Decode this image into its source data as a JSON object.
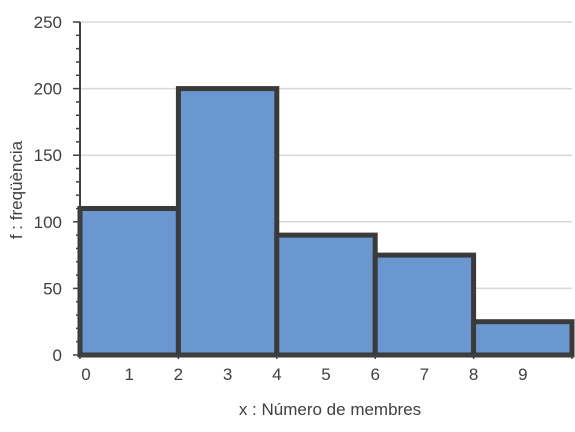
{
  "chart_data": {
    "type": "bar",
    "xlabel": "x : Número de membres",
    "ylabel": "f : freqüència",
    "ylim": [
      0,
      250
    ],
    "yticks": [
      0,
      50,
      100,
      150,
      200,
      250
    ],
    "xlim": [
      0,
      10
    ],
    "xtick_labels": [
      "0",
      "1",
      "2",
      "3",
      "4",
      "5",
      "6",
      "7",
      "8",
      "9"
    ],
    "bins": [
      {
        "start": 0,
        "end": 2,
        "value": 110
      },
      {
        "start": 2,
        "end": 4,
        "value": 200
      },
      {
        "start": 4,
        "end": 6,
        "value": 90
      },
      {
        "start": 6,
        "end": 8,
        "value": 75
      },
      {
        "start": 8,
        "end": 10,
        "value": 25
      }
    ],
    "grid": "horizontal",
    "colors": {
      "bar_fill": "#6b97d0",
      "bar_edge": "#3a3a3a",
      "grid": "#d9d9d9",
      "axis": "#404040"
    }
  }
}
